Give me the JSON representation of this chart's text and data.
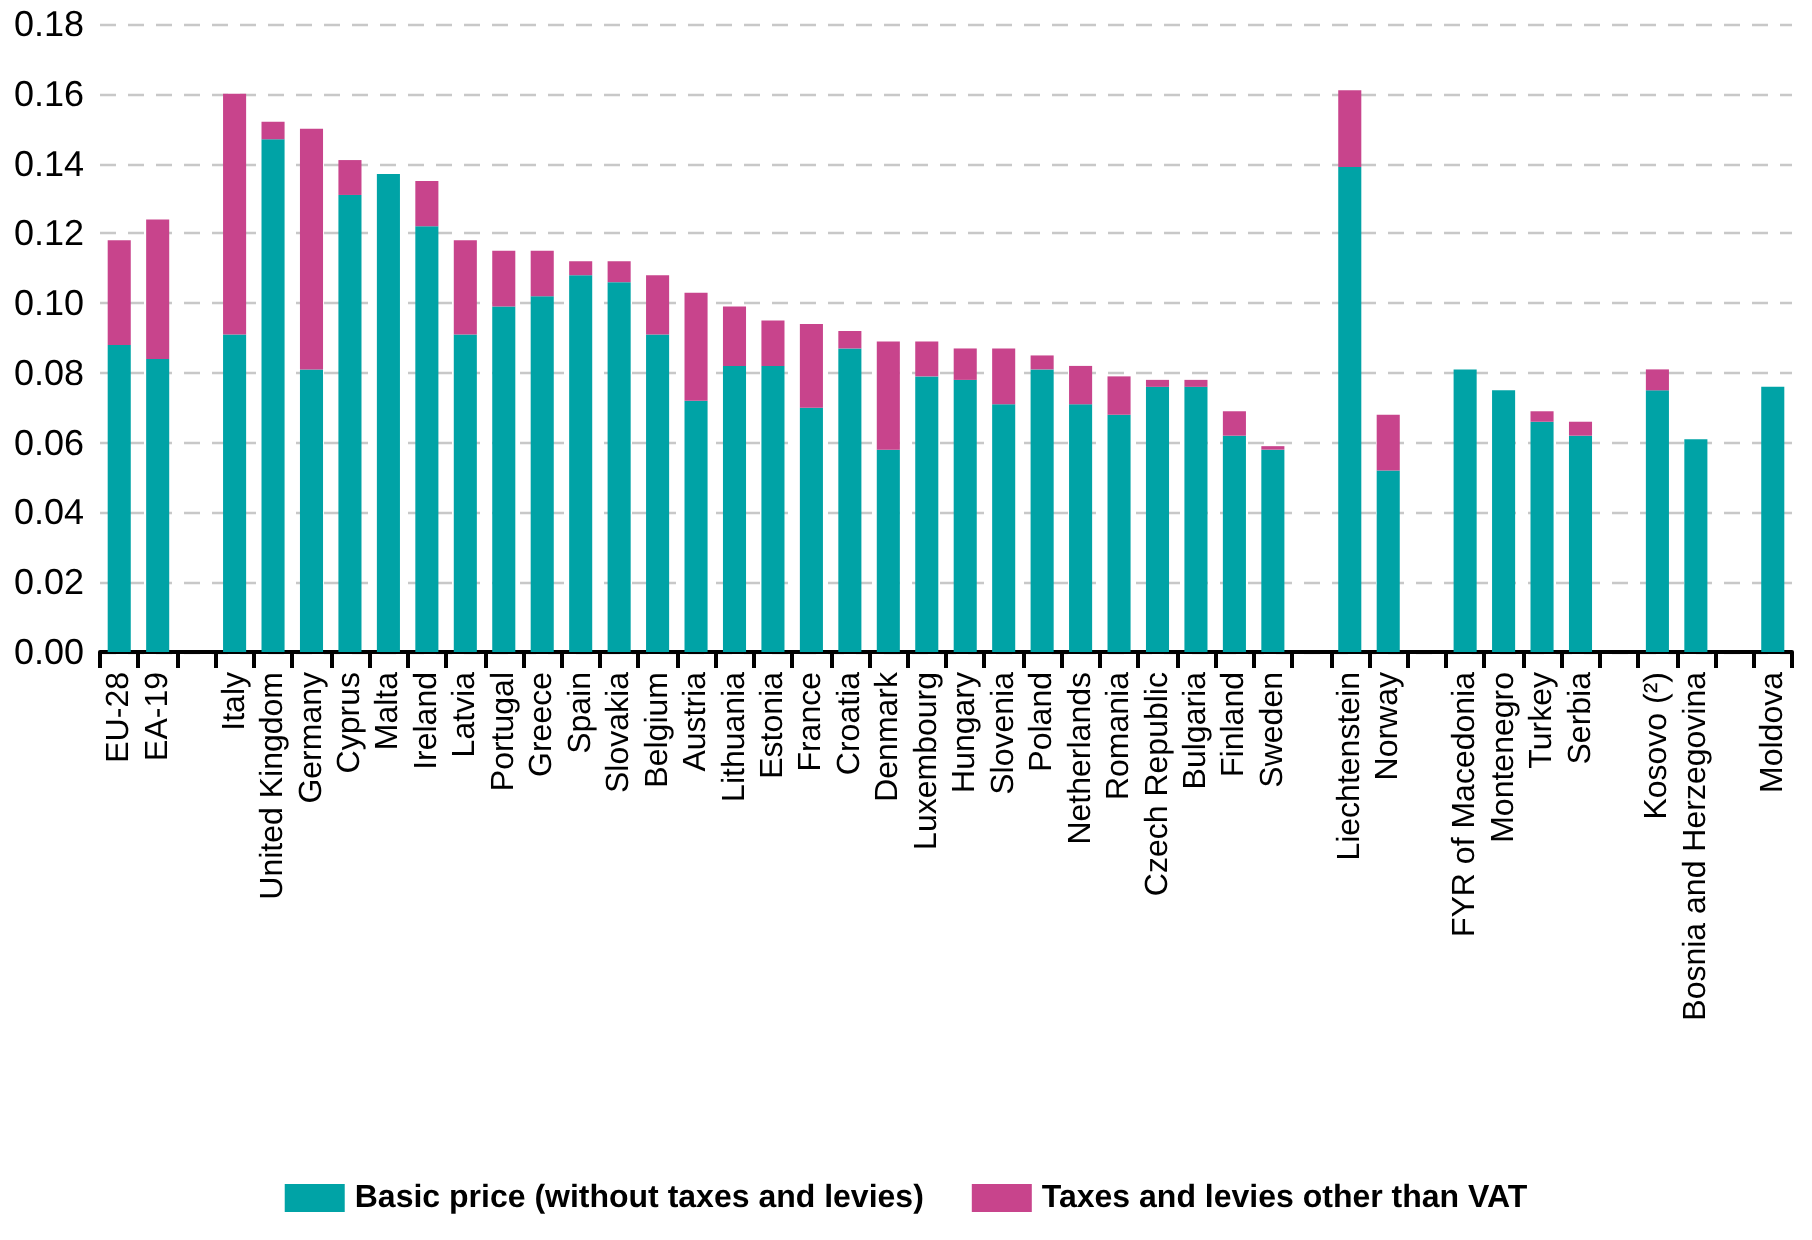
{
  "chart_data": {
    "type": "bar",
    "stacked": true,
    "categories": [
      "EU-28",
      "EA-19",
      null,
      "Italy",
      "United Kingdom",
      "Germany",
      "Cyprus",
      "Malta",
      "Ireland",
      "Latvia",
      "Portugal",
      "Greece",
      "Spain",
      "Slovakia",
      "Belgium",
      "Austria",
      "Lithuania",
      "Estonia",
      "France",
      "Croatia",
      "Denmark",
      "Luxembourg",
      "Hungary",
      "Slovenia",
      "Poland",
      "Netherlands",
      "Romania",
      "Czech Republic",
      "Bulgaria",
      "Finland",
      "Sweden",
      null,
      "Liechtenstein",
      "Norway",
      null,
      "FYR of Macedonia",
      "Montenegro",
      "Turkey",
      "Serbia",
      null,
      "Kosovo (²)",
      "Bosnia and Herzegovina",
      null,
      "Moldova"
    ],
    "series": [
      {
        "name": "Basic price (without taxes and levies)",
        "color": "#00a3a6",
        "values": [
          0.088,
          0.084,
          null,
          0.091,
          0.147,
          0.081,
          0.131,
          0.137,
          0.122,
          0.091,
          0.099,
          0.102,
          0.108,
          0.106,
          0.091,
          0.072,
          0.082,
          0.082,
          0.07,
          0.087,
          0.058,
          0.079,
          0.078,
          0.071,
          0.081,
          0.071,
          0.068,
          0.076,
          0.076,
          0.062,
          0.058,
          null,
          0.139,
          0.052,
          null,
          0.081,
          0.075,
          0.066,
          0.062,
          null,
          0.075,
          0.061,
          null,
          0.076
        ]
      },
      {
        "name": "Taxes and levies other than VAT",
        "color": "#c8448c",
        "values": [
          0.03,
          0.04,
          null,
          0.069,
          0.005,
          0.069,
          0.01,
          0,
          0.013,
          0.027,
          0.016,
          0.013,
          0.004,
          0.006,
          0.017,
          0.031,
          0.017,
          0.013,
          0.024,
          0.005,
          0.031,
          0.01,
          0.009,
          0.016,
          0.004,
          0.011,
          0.011,
          0.002,
          0.002,
          0.007,
          0.001,
          null,
          0.022,
          0.016,
          null,
          0,
          0,
          0.003,
          0.004,
          null,
          0.006,
          0,
          null,
          0
        ]
      }
    ],
    "ylim": [
      0,
      0.18
    ],
    "yticks": [
      {
        "value": 0,
        "label": "0.00"
      },
      {
        "value": 0.02,
        "label": "0.02"
      },
      {
        "value": 0.04,
        "label": "0.04"
      },
      {
        "value": 0.06,
        "label": "0.06"
      },
      {
        "value": 0.08,
        "label": "0.08"
      },
      {
        "value": 0.1,
        "label": "0.10"
      },
      {
        "value": 0.12,
        "label": "0.12"
      },
      {
        "value": 0.14,
        "label": "0.14"
      },
      {
        "value": 0.16,
        "label": "0.16"
      },
      {
        "value": 0.18,
        "label": "0.18"
      }
    ],
    "grid": "y",
    "legend": "bottom"
  }
}
